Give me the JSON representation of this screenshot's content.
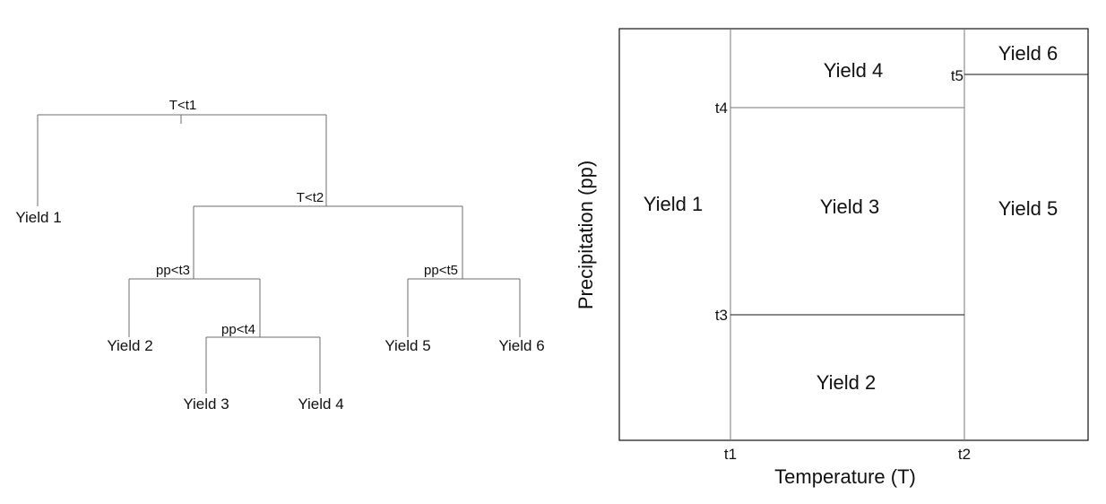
{
  "tree": {
    "splits": {
      "root": "T<t1",
      "t2": "T<t2",
      "pp_t3": "pp<t3",
      "pp_t4": "pp<t4",
      "pp_t5": "pp<t5"
    },
    "leaves": {
      "yield1": "Yield 1",
      "yield2": "Yield 2",
      "yield3": "Yield 3",
      "yield4": "Yield 4",
      "yield5": "Yield 5",
      "yield6": "Yield 6"
    }
  },
  "partition": {
    "regions": {
      "yield1": "Yield 1",
      "yield2": "Yield 2",
      "yield3": "Yield 3",
      "yield4": "Yield 4",
      "yield5": "Yield 5",
      "yield6": "Yield 6"
    },
    "thresholds": {
      "t1": "t1",
      "t2": "t2",
      "t3": "t3",
      "t4": "t4",
      "t5": "t5"
    },
    "x_axis_label": "Temperature (T)",
    "y_axis_label": "Precipitation (pp)"
  }
}
